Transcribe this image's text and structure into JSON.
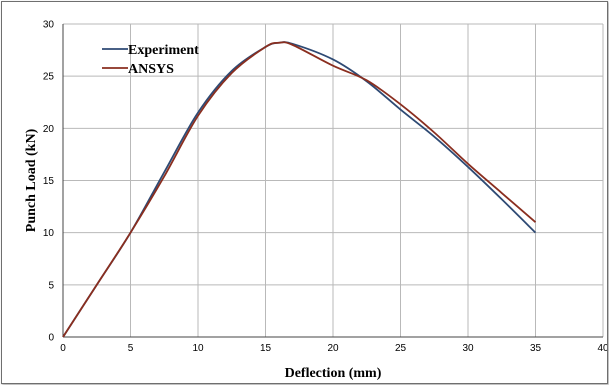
{
  "chart_data": {
    "type": "line",
    "xlabel": "Deflection (mm)",
    "ylabel": "Punch Load (kN)",
    "xlim": [
      0,
      40
    ],
    "ylim": [
      0,
      30
    ],
    "x_ticks": [
      0,
      5,
      10,
      15,
      20,
      25,
      30,
      35,
      40
    ],
    "y_ticks": [
      0,
      5,
      10,
      15,
      20,
      25,
      30
    ],
    "grid": true,
    "legend_position": "top-left",
    "series": [
      {
        "name": "Experiment",
        "color": "#2e4a74",
        "points": [
          [
            0,
            0
          ],
          [
            2.5,
            5
          ],
          [
            5,
            10
          ],
          [
            7.5,
            15.8
          ],
          [
            10,
            21.5
          ],
          [
            12.5,
            25.5
          ],
          [
            15,
            27.8
          ],
          [
            16,
            28.2
          ],
          [
            17,
            28.1
          ],
          [
            20,
            26.6
          ],
          [
            22.5,
            24.5
          ],
          [
            25,
            21.8
          ],
          [
            27.5,
            19.2
          ],
          [
            30,
            16.3
          ],
          [
            32.5,
            13.2
          ],
          [
            35,
            10
          ]
        ]
      },
      {
        "name": "ANSYS",
        "color": "#8a2e1f",
        "points": [
          [
            0,
            0
          ],
          [
            2.5,
            5
          ],
          [
            5,
            10
          ],
          [
            7.5,
            15.4
          ],
          [
            10,
            21.2
          ],
          [
            12.5,
            25.3
          ],
          [
            15,
            27.8
          ],
          [
            16,
            28.2
          ],
          [
            17,
            28.0
          ],
          [
            20,
            26.0
          ],
          [
            22.5,
            24.6
          ],
          [
            25,
            22.3
          ],
          [
            27.5,
            19.6
          ],
          [
            30,
            16.6
          ],
          [
            32.5,
            13.8
          ],
          [
            35,
            11
          ]
        ]
      }
    ]
  }
}
